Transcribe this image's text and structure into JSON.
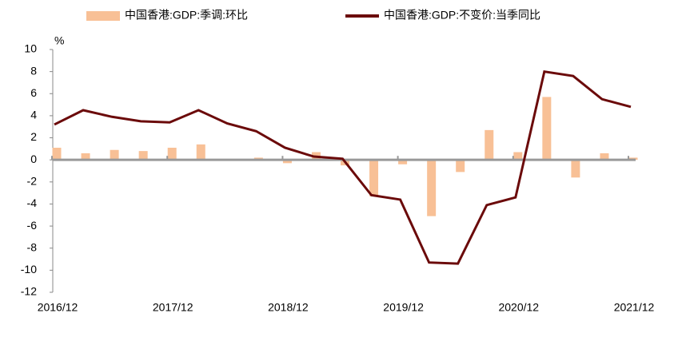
{
  "chart_data": {
    "type": "bar_line",
    "y_unit": "%",
    "categories": [
      "2016/12",
      null,
      null,
      null,
      "2017/12",
      null,
      null,
      null,
      "2018/12",
      null,
      null,
      null,
      "2019/12",
      null,
      null,
      null,
      "2020/12",
      null,
      null,
      null,
      "2021/12"
    ],
    "series": [
      {
        "name": "中国香港:GDP:季调:环比",
        "type": "bar",
        "color": "#f8c096",
        "values": [
          1.1,
          0.6,
          0.9,
          0.8,
          1.1,
          1.4,
          0,
          0.2,
          -0.3,
          0.7,
          -0.5,
          -3.3,
          -0.4,
          -5.1,
          -1.1,
          2.7,
          0.7,
          5.7,
          -1.6,
          0.6,
          0.2
        ]
      },
      {
        "name": "中国香港:GDP:不变价:当季同比",
        "type": "line",
        "color": "#6b0a0a",
        "values": [
          3.2,
          4.5,
          3.9,
          3.5,
          3.4,
          4.5,
          3.3,
          2.6,
          1.1,
          0.3,
          0.1,
          -3.2,
          -3.6,
          -9.3,
          -9.4,
          -4.1,
          -3.4,
          8.0,
          7.6,
          5.5,
          4.8
        ]
      }
    ],
    "ylim": [
      -12,
      10
    ],
    "yticks": [
      -12,
      -10,
      -8,
      -6,
      -4,
      -2,
      0,
      2,
      4,
      6,
      8,
      10
    ]
  }
}
